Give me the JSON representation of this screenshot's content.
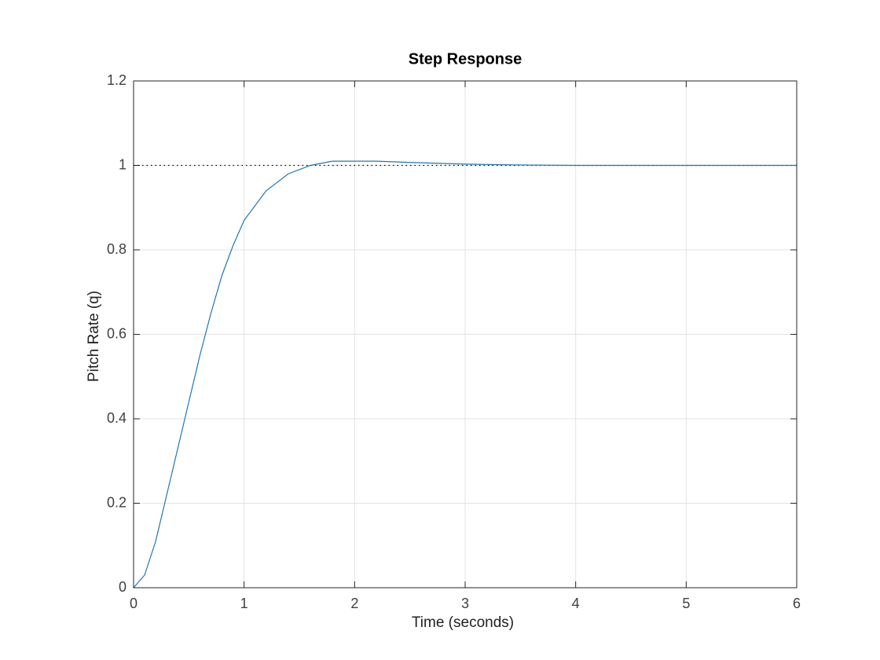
{
  "chart_data": {
    "type": "line",
    "title": "Step Response",
    "x_label": "Time (seconds)",
    "y_label": "Pitch Rate (q)",
    "x": [
      0,
      0.1,
      0.2,
      0.3,
      0.4,
      0.5,
      0.6,
      0.7,
      0.8,
      0.9,
      1.0,
      1.2,
      1.4,
      1.6,
      1.8,
      2.0,
      2.2,
      2.5,
      3,
      3.5,
      4,
      5,
      6
    ],
    "values": [
      0,
      0.03,
      0.11,
      0.22,
      0.33,
      0.44,
      0.55,
      0.65,
      0.74,
      0.81,
      0.87,
      0.94,
      0.98,
      1.0,
      1.01,
      1.01,
      1.01,
      1.007,
      1.003,
      1.001,
      1.0,
      1.0,
      1.0
    ],
    "color": "#1f77b4",
    "reference_line": {
      "y": 1,
      "color": "#000000",
      "style": "dotted"
    },
    "xlim": [
      0,
      6
    ],
    "xticks": [
      0,
      1,
      2,
      3,
      4,
      5,
      6
    ],
    "ylim": [
      0,
      1.2
    ],
    "yticks": [
      0,
      0.2,
      0.4,
      0.6,
      0.8,
      1,
      1.2
    ],
    "grid": true
  }
}
